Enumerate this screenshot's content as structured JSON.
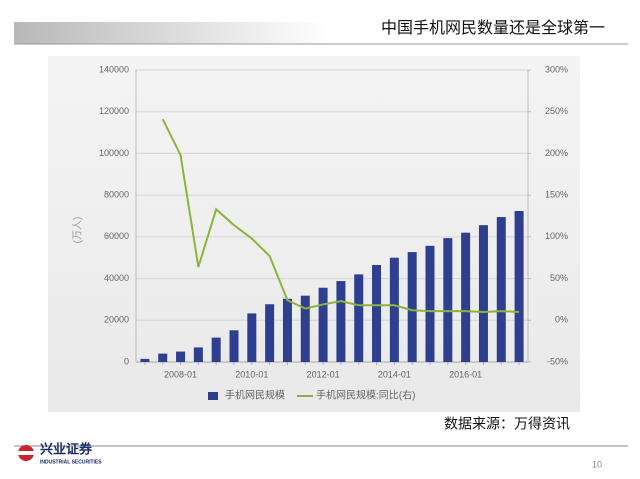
{
  "chart_data": {
    "type": "bar_line",
    "title": "中国手机网民数量还是全球第一",
    "y_label": "(万人)",
    "categories": [
      null,
      null,
      "2008-01",
      null,
      null,
      null,
      "2010-01",
      null,
      null,
      null,
      "2012-01",
      null,
      null,
      null,
      "2014-01",
      null,
      null,
      null,
      "2016-01",
      null,
      null,
      null
    ],
    "series": [
      {
        "name": "手机网民规模",
        "type": "bar",
        "color": "#2e3f8f",
        "values": [
          1500,
          4000,
          5000,
          7000,
          11700,
          15200,
          23300,
          27700,
          30300,
          31800,
          35600,
          38800,
          42000,
          46500,
          50000,
          52700,
          55700,
          59400,
          62000,
          65600,
          69500,
          72400
        ]
      },
      {
        "name": "手机网民规模:同比(右)",
        "type": "line",
        "axis": "y2",
        "color": "#8db33a",
        "values": [
          null,
          241,
          198,
          64,
          133,
          114,
          98,
          77,
          24,
          14,
          19,
          23,
          18,
          18,
          18,
          12,
          11,
          11,
          11,
          10,
          11,
          10
        ]
      }
    ],
    "ylim": [
      0,
      140000
    ],
    "yticks": [
      0,
      20000,
      40000,
      60000,
      80000,
      100000,
      120000,
      140000
    ],
    "y2lim": [
      -50,
      300
    ],
    "y2ticks": [
      {
        "value": -50,
        "label": "-50%"
      },
      {
        "value": 0,
        "label": "0%"
      },
      {
        "value": 50,
        "label": "50%"
      },
      {
        "value": 100,
        "label": "100%"
      },
      {
        "value": 150,
        "label": "150%"
      },
      {
        "value": 200,
        "label": "200%"
      },
      {
        "value": 250,
        "label": "250%"
      },
      {
        "value": 300,
        "label": "300%"
      }
    ],
    "grid": true,
    "legend": "bottom"
  },
  "source": "数据来源：万得资讯",
  "footer": {
    "brand": "兴业证券",
    "brand_en": "INDUSTRIAL SECURITIES",
    "page": "10"
  }
}
